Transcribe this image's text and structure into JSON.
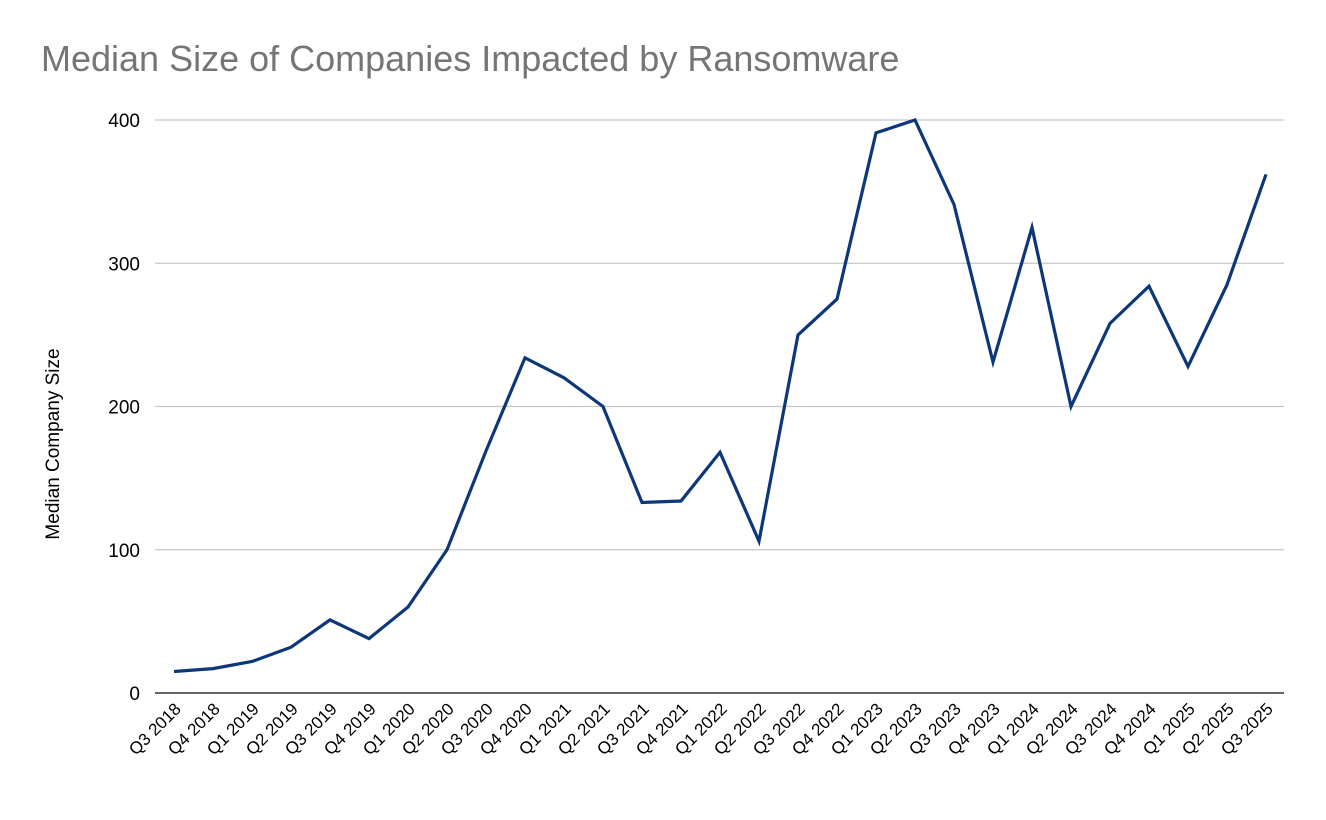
{
  "chart_data": {
    "type": "line",
    "title": "Median Size of Companies Impacted by Ransomware",
    "xlabel": "",
    "ylabel": "Median Company Size",
    "ylim": [
      0,
      400
    ],
    "yticks": [
      0,
      100,
      200,
      300,
      400
    ],
    "grid": true,
    "legend": "none",
    "categories": [
      "Q3 2018",
      "Q4 2018",
      "Q1 2019",
      "Q2 2019",
      "Q3 2019",
      "Q4 2019",
      "Q1 2020",
      "Q2 2020",
      "Q3 2020",
      "Q4 2020",
      "Q1 2021",
      "Q2 2021",
      "Q3 2021",
      "Q4 2021",
      "Q1 2022",
      "Q2 2022",
      "Q3 2022",
      "Q4 2022",
      "Q1 2023",
      "Q2 2023",
      "Q3 2023",
      "Q4 2023",
      "Q1 2024",
      "Q2 2024",
      "Q3 2024",
      "Q4 2024",
      "Q1 2025",
      "Q2 2025",
      "Q3 2025"
    ],
    "series": [
      {
        "color": "#0d3778",
        "values": [
          15,
          17,
          22,
          32,
          51,
          38,
          60,
          100,
          169,
          234,
          220,
          200,
          133,
          134,
          168,
          106,
          250,
          275,
          391,
          400,
          341,
          231,
          325,
          200,
          258,
          284,
          228,
          285,
          362
        ]
      }
    ]
  }
}
